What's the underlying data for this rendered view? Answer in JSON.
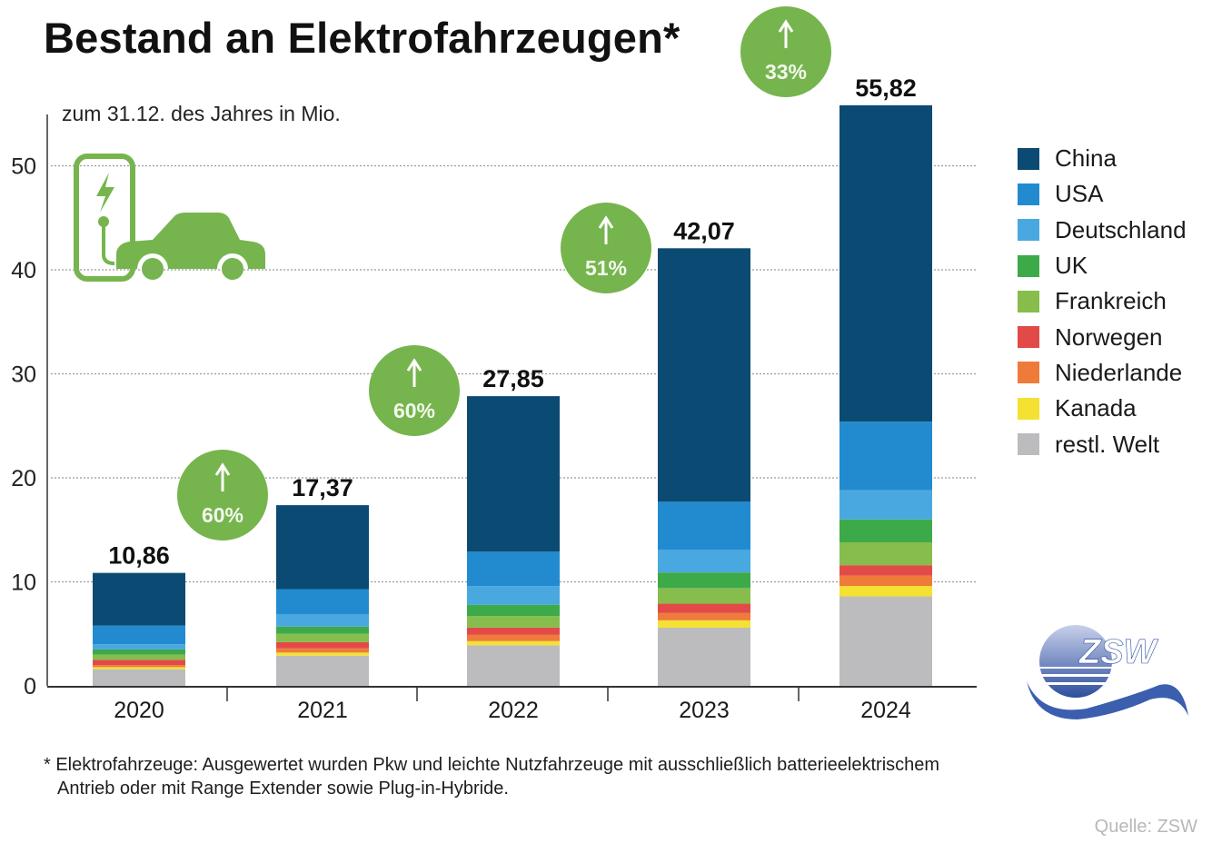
{
  "title": "Bestand an Elektrofahrzeugen*",
  "subtitle": "zum 31.12. des Jahres in Mio.",
  "footnote": {
    "line1": "* Elektrofahrzeuge: Ausgewertet wurden Pkw und leichte Nutzfahrzeuge mit ausschließlich batterieelektrischem",
    "line2": "Antrieb oder mit Range Extender sowie Plug-in-Hybride."
  },
  "source": "Quelle: ZSW",
  "logo": {
    "text": "ZSW",
    "icon": "zsw-logo-icon"
  },
  "illustration": {
    "icon": "ev-charging-car-icon",
    "color": "#76b54d"
  },
  "chart_data": {
    "type": "bar",
    "stacked": true,
    "title": "Bestand an Elektrofahrzeugen*",
    "subtitle": "zum 31.12. des Jahres in Mio.",
    "xlabel": "",
    "ylabel": "",
    "ylim": [
      0,
      55
    ],
    "yticks": [
      0,
      10,
      20,
      30,
      40,
      50
    ],
    "ytick_labels": [
      "0",
      "10",
      "20",
      "30",
      "40",
      "50"
    ],
    "grid": "horizontal dotted",
    "legend_position": "right",
    "categories": [
      "2020",
      "2021",
      "2022",
      "2023",
      "2024"
    ],
    "totals": [
      10.86,
      17.37,
      27.85,
      42.07,
      55.82
    ],
    "total_labels": [
      "10,86",
      "17,37",
      "27,85",
      "42,07",
      "55,82"
    ],
    "growth_badges": [
      {
        "category": "2021",
        "label": "60%",
        "icon": "arrow-up-icon"
      },
      {
        "category": "2022",
        "label": "60%",
        "icon": "arrow-up-icon"
      },
      {
        "category": "2023",
        "label": "51%",
        "icon": "arrow-up-icon"
      },
      {
        "category": "2024",
        "label": "33%",
        "icon": "arrow-up-icon"
      }
    ],
    "badge_color": "#76b54d",
    "series": [
      {
        "name": "restl. Welt",
        "color": "#bcbcbe",
        "values": [
          1.6,
          2.9,
          3.9,
          5.6,
          8.6
        ]
      },
      {
        "name": "Kanada",
        "color": "#f4e132",
        "values": [
          0.2,
          0.3,
          0.4,
          0.7,
          1.0
        ]
      },
      {
        "name": "Niederlande",
        "color": "#ef7b3b",
        "values": [
          0.2,
          0.4,
          0.6,
          0.7,
          1.0
        ]
      },
      {
        "name": "Norwegen",
        "color": "#e24a48",
        "values": [
          0.5,
          0.6,
          0.7,
          0.9,
          1.0
        ]
      },
      {
        "name": "Frankreich",
        "color": "#86bd4c",
        "values": [
          0.5,
          0.8,
          1.1,
          1.5,
          2.2
        ]
      },
      {
        "name": "UK",
        "color": "#3daa4a",
        "values": [
          0.5,
          0.7,
          1.1,
          1.5,
          2.2
        ]
      },
      {
        "name": "Deutschland",
        "color": "#4aa8e0",
        "values": [
          0.5,
          1.2,
          1.8,
          2.2,
          2.8
        ]
      },
      {
        "name": "USA",
        "color": "#228bd0",
        "values": [
          1.8,
          2.4,
          3.3,
          4.6,
          6.6
        ]
      },
      {
        "name": "China",
        "color": "#0b4a72",
        "values": [
          5.06,
          8.07,
          14.95,
          24.37,
          30.42
        ]
      }
    ],
    "legend_order": [
      "China",
      "USA",
      "Deutschland",
      "UK",
      "Frankreich",
      "Norwegen",
      "Niederlande",
      "Kanada",
      "restl. Welt"
    ]
  }
}
